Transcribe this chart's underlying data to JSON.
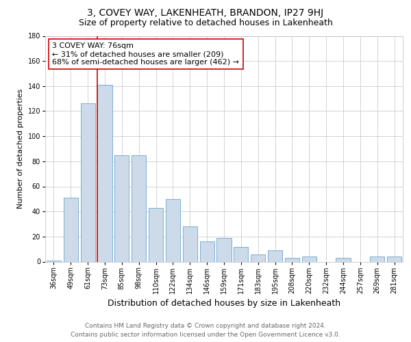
{
  "title": "3, COVEY WAY, LAKENHEATH, BRANDON, IP27 9HJ",
  "subtitle": "Size of property relative to detached houses in Lakenheath",
  "xlabel": "Distribution of detached houses by size in Lakenheath",
  "ylabel": "Number of detached properties",
  "bar_labels": [
    "36sqm",
    "49sqm",
    "61sqm",
    "73sqm",
    "85sqm",
    "98sqm",
    "110sqm",
    "122sqm",
    "134sqm",
    "146sqm",
    "159sqm",
    "171sqm",
    "183sqm",
    "195sqm",
    "208sqm",
    "220sqm",
    "232sqm",
    "244sqm",
    "257sqm",
    "269sqm",
    "281sqm"
  ],
  "bar_values": [
    1,
    51,
    126,
    141,
    85,
    85,
    43,
    50,
    28,
    16,
    19,
    12,
    6,
    9,
    3,
    4,
    0,
    3,
    0,
    4,
    4
  ],
  "bar_color": "#ccdaea",
  "bar_edge_color": "#7bafd4",
  "vline_x": 3,
  "vline_color": "#cc0000",
  "annotation_text": "3 COVEY WAY: 76sqm\n← 31% of detached houses are smaller (209)\n68% of semi-detached houses are larger (462) →",
  "annotation_box_color": "#ffffff",
  "annotation_box_edge_color": "#cc0000",
  "ylim": [
    0,
    180
  ],
  "yticks": [
    0,
    20,
    40,
    60,
    80,
    100,
    120,
    140,
    160,
    180
  ],
  "footer_line1": "Contains HM Land Registry data © Crown copyright and database right 2024.",
  "footer_line2": "Contains public sector information licensed under the Open Government Licence v3.0.",
  "background_color": "#ffffff",
  "grid_color": "#cccccc",
  "title_fontsize": 10,
  "subtitle_fontsize": 9,
  "xlabel_fontsize": 9,
  "ylabel_fontsize": 8,
  "tick_fontsize": 7,
  "annotation_fontsize": 8,
  "footer_fontsize": 6.5
}
